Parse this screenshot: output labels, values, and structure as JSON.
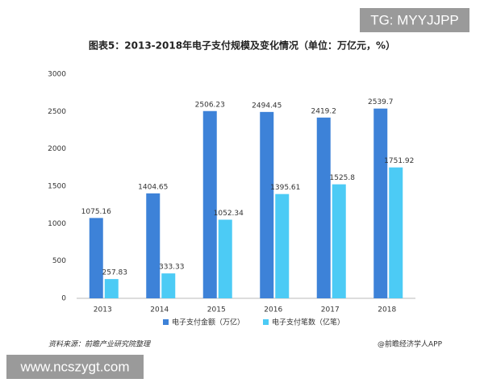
{
  "chart_data": {
    "type": "bar",
    "title": "图表5：2013-2018年电子支付规模及变化情况（单位：万亿元，%）",
    "categories": [
      "2013",
      "2014",
      "2015",
      "2016",
      "2017",
      "2018"
    ],
    "series": [
      {
        "name": "电子支付金额（万亿）",
        "color": "#3d82d8",
        "values": [
          1075.16,
          1404.65,
          2506.23,
          2494.45,
          2419.2,
          2539.7
        ]
      },
      {
        "name": "电子支付笔数（亿笔）",
        "color": "#4ccbf5",
        "values": [
          257.83,
          333.33,
          1052.34,
          1395.61,
          1525.8,
          1751.92
        ]
      }
    ],
    "ylim": [
      0,
      3000
    ],
    "yticks": [
      0,
      500,
      1000,
      1500,
      2000,
      2500,
      3000
    ],
    "grid": false,
    "source": "资料来源：前瞻产业研究院整理",
    "credit": "@前瞻经济学人APP"
  },
  "watermarks": [
    "TG: MYYJJPP",
    "www.ncszygt.com"
  ]
}
